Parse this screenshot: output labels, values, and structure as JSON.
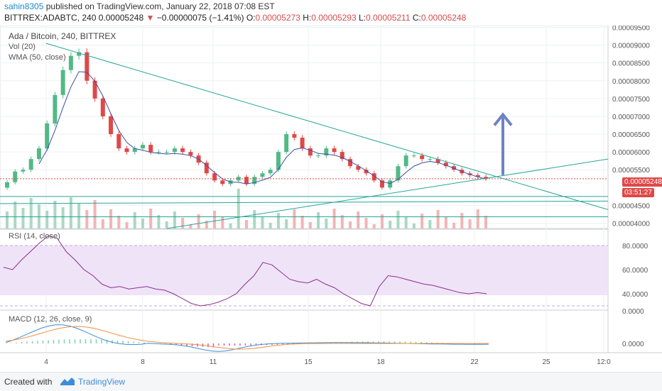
{
  "header": {
    "user": "sahin8305",
    "published_text": "published on TradingView.com, January 22, 2018 07:08 EST",
    "symbol_line": "BITTREX:ADABTC, 240",
    "last": "0.00005248",
    "arrow": "▼",
    "change": "−0.00000075 (−1.41%)",
    "o_label": "O:",
    "o": "0.00005273",
    "h_label": "H:",
    "h": "0.00005293",
    "l_label": "L:",
    "l": "0.00005211",
    "c_label": "C:",
    "c": "0.00005248"
  },
  "legend": {
    "title": "Ada / Bitcoin, 240, BITTREX",
    "vol": "Vol (20)",
    "wma": "WMA (50, close)"
  },
  "price_axis": {
    "ticks": [
      "0.00009500",
      "0.00009000",
      "0.00008500",
      "0.00008000",
      "0.00007500",
      "0.00007000",
      "0.00006500",
      "0.00006000",
      "0.00005500",
      "0.00004500",
      "0.00004000"
    ],
    "current_price": "0.00005248",
    "countdown": "03:51:27"
  },
  "rsi_panel": {
    "title": "RSI (14, close)",
    "ticks": [
      "80.0000",
      "60.0000",
      "40.0000"
    ]
  },
  "macd_panel": {
    "title": "MACD (12, 26, close, 9)",
    "ticks": [
      "0.0000",
      "0.0000"
    ]
  },
  "time_axis": {
    "ticks": [
      "4",
      "8",
      "11",
      "15",
      "18",
      "22",
      "25",
      "12:0"
    ]
  },
  "footer": {
    "created_with": "Created with",
    "brand": "TradingView"
  },
  "colors": {
    "up": "#52b987",
    "down": "#e04848",
    "wma": "#3a4fa0",
    "trendline": "#26a69a",
    "rsi": "#8e2f8e",
    "rsi_band": "#efe3f8",
    "macd": "#3d8ed6",
    "signal": "#f58d42",
    "arrow": "#6f82c3",
    "vol_up": "#a9d9c2",
    "vol_down": "#f4b4b4"
  },
  "chart_data": {
    "type": "candlestick",
    "title": "Ada / Bitcoin, 240, BITTREX",
    "x_ticks": [
      "4",
      "8",
      "11",
      "15",
      "18",
      "22",
      "25"
    ],
    "ylim": [
      3.85e-05,
      9.55e-05
    ],
    "close_approx": [
      5.15e-05,
      5.45e-05,
      5.5e-05,
      5.8e-05,
      6.1e-05,
      6.8e-05,
      7.6e-05,
      8.3e-05,
      8.7e-05,
      8.8e-05,
      8e-05,
      7.5e-05,
      7e-05,
      6.5e-05,
      6.1e-05,
      6e-05,
      6.1e-05,
      6.2e-05,
      6e-05,
      6e-05,
      6e-05,
      6.1e-05,
      6e-05,
      5.9e-05,
      5.7e-05,
      5.4e-05,
      5.2e-05,
      5.1e-05,
      5.2e-05,
      5.3e-05,
      5.1e-05,
      5.3e-05,
      5.4e-05,
      5.5e-05,
      6e-05,
      6.5e-05,
      6.4e-05,
      6.1e-05,
      5.9e-05,
      5.9e-05,
      6.1e-05,
      6e-05,
      5.8e-05,
      5.6e-05,
      5.5e-05,
      5.4e-05,
      5.2e-05,
      5e-05,
      5.2e-05,
      5.6e-05,
      5.9e-05,
      5.9e-05,
      5.8e-05,
      5.8e-05,
      5.7e-05,
      5.6e-05,
      5.5e-05,
      5.4e-05,
      5.35e-05,
      5.3e-05,
      5.25e-05
    ],
    "current": 5.248e-05,
    "rsi_ticks": [
      80,
      60,
      40
    ],
    "rsi_approx": [
      62,
      60,
      68,
      75,
      82,
      88,
      86,
      75,
      68,
      60,
      55,
      48,
      45,
      46,
      44,
      45,
      46,
      44,
      43,
      40,
      36,
      32,
      30,
      31,
      33,
      36,
      40,
      48,
      55,
      66,
      64,
      58,
      52,
      50,
      49,
      52,
      48,
      45,
      40,
      36,
      32,
      30,
      46,
      55,
      54,
      52,
      50,
      48,
      47,
      45,
      43,
      41,
      40,
      41,
      40
    ]
  }
}
